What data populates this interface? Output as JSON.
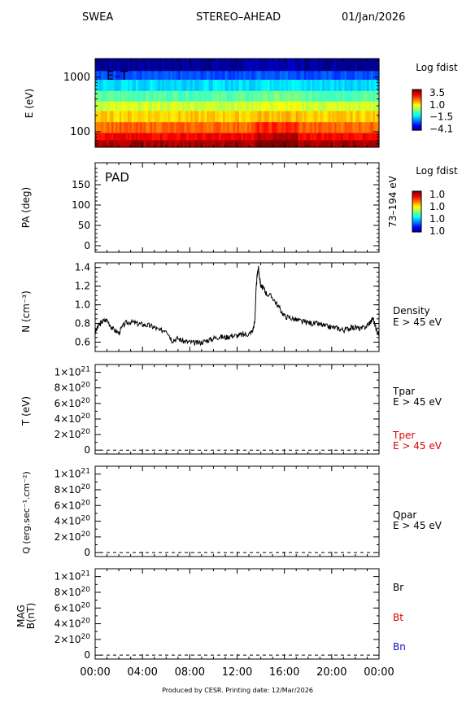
{
  "header": {
    "instrument": "SWEA",
    "spacecraft": "STEREO–AHEAD",
    "date": "01/Jan/2026"
  },
  "footer": {
    "text": "Produced by CESR.   Printing date: 12/Mar/2026"
  },
  "time_axis": {
    "ticks": [
      "00:00",
      "04:00",
      "08:00",
      "12:00",
      "16:00",
      "20:00",
      "00:00"
    ],
    "range_hours": [
      0,
      24
    ]
  },
  "colors": {
    "black": "#000000",
    "red": "#e00000",
    "blue": "#1010c0"
  },
  "chart_data": [
    {
      "type": "heatmap",
      "panel": "energy-time",
      "label": "E–T",
      "ylabel": "E (eV)",
      "yscale": "log",
      "yticks": [
        "100",
        "1000"
      ],
      "colorbar": {
        "title": "Log fdist",
        "ticks": [
          "3.5",
          "1.0",
          "−1.5",
          "−4.1"
        ],
        "range": [
          -4.1,
          3.5
        ]
      },
      "bands": [
        {
          "from": 1300,
          "to": 2200,
          "level": -3.9
        },
        {
          "from": 900,
          "to": 1300,
          "level": -2.6
        },
        {
          "from": 560,
          "to": 900,
          "level": -1.5
        },
        {
          "from": 360,
          "to": 560,
          "level": -0.6
        },
        {
          "from": 240,
          "to": 360,
          "level": 0.3
        },
        {
          "from": 150,
          "to": 240,
          "level": 1.0
        },
        {
          "from": 95,
          "to": 150,
          "level": 1.8
        },
        {
          "from": 70,
          "to": 95,
          "level": 2.6
        },
        {
          "from": 52,
          "to": 70,
          "level": 3.2
        }
      ]
    },
    {
      "type": "heatmap",
      "panel": "pitch-angle",
      "label": "PAD",
      "ylabel": "PA (deg)",
      "right_label": "73–194 eV",
      "yticks": [
        "0",
        "50",
        "100",
        "150"
      ],
      "ylim": [
        0,
        180
      ],
      "colorbar": {
        "title": "Log fdist",
        "ticks": [
          "1.0",
          "1.0",
          "1.0",
          "1.0"
        ]
      }
    },
    {
      "type": "line",
      "panel": "density",
      "ylabel": "N (cm⁻³)",
      "yticks": [
        "0.6",
        "0.8",
        "1.0",
        "1.2",
        "1.4"
      ],
      "ylim": [
        0.5,
        1.45
      ],
      "series": [
        {
          "name": "Density E > 45 eV",
          "label_lines": [
            "Density",
            "E > 45 eV"
          ],
          "x": [
            0,
            0.3,
            0.6,
            1.0,
            1.5,
            2.0,
            2.5,
            3.0,
            3.5,
            4.0,
            4.5,
            5.0,
            5.5,
            6.0,
            6.5,
            7.0,
            7.5,
            8.0,
            8.5,
            9.0,
            9.5,
            10.0,
            10.5,
            11.0,
            11.5,
            12.0,
            12.5,
            13.0,
            13.3,
            13.5,
            13.6,
            13.7,
            13.8,
            13.9,
            14.0,
            14.2,
            14.5,
            15.0,
            15.5,
            16.0,
            16.5,
            17.0,
            17.5,
            18.0,
            18.5,
            19.0,
            19.5,
            20.0,
            20.5,
            21.0,
            21.5,
            22.0,
            22.5,
            23.0,
            23.3,
            23.5,
            23.8,
            24.0
          ],
          "y": [
            0.7,
            0.78,
            0.82,
            0.84,
            0.74,
            0.7,
            0.8,
            0.82,
            0.8,
            0.79,
            0.78,
            0.76,
            0.72,
            0.74,
            0.62,
            0.64,
            0.61,
            0.6,
            0.59,
            0.6,
            0.62,
            0.64,
            0.66,
            0.65,
            0.67,
            0.67,
            0.68,
            0.69,
            0.72,
            0.82,
            1.15,
            1.32,
            1.4,
            1.3,
            1.2,
            1.18,
            1.12,
            1.08,
            0.98,
            0.88,
            0.86,
            0.84,
            0.82,
            0.81,
            0.8,
            0.79,
            0.77,
            0.76,
            0.75,
            0.73,
            0.75,
            0.76,
            0.74,
            0.78,
            0.82,
            0.86,
            0.72,
            0.68
          ]
        }
      ]
    },
    {
      "type": "line",
      "panel": "temperature",
      "ylabel": "T (eV)",
      "yticks": [
        "0",
        "2×10²⁰",
        "4×10²⁰",
        "6×10²⁰",
        "8×10²⁰",
        "1×10²¹"
      ],
      "ylim": [
        -5e+19,
        1.1e+21
      ],
      "series": [
        {
          "name": "Tpar E > 45 eV",
          "label_lines": [
            "Tpar",
            "E > 45 eV"
          ],
          "color": "#000000",
          "values": []
        },
        {
          "name": "Tper E > 45 eV",
          "label_lines": [
            "Tper",
            "E > 45 eV"
          ],
          "color": "#e00000",
          "values": []
        }
      ],
      "zero_line": "dashed"
    },
    {
      "type": "line",
      "panel": "heat-flux",
      "ylabel": "Q (erg.sec⁻¹.cm⁻²)",
      "yticks": [
        "0",
        "2×10²⁰",
        "4×10²⁰",
        "6×10²⁰",
        "8×10²⁰",
        "1×10²¹"
      ],
      "ylim": [
        -5e+19,
        1.1e+21
      ],
      "series": [
        {
          "name": "Qpar E > 45 eV",
          "label_lines": [
            "Qpar",
            "E > 45 eV"
          ],
          "color": "#000000",
          "values": []
        }
      ],
      "zero_line": "dashed"
    },
    {
      "type": "line",
      "panel": "magnetic-field",
      "ylabel_lines": [
        "MAG",
        "B(nT)"
      ],
      "yticks": [
        "0",
        "2×10²⁰",
        "4×10²⁰",
        "6×10²⁰",
        "8×10²⁰",
        "1×10²¹"
      ],
      "ylim": [
        -5e+19,
        1.1e+21
      ],
      "series": [
        {
          "name": "Br",
          "color": "#000000",
          "values": []
        },
        {
          "name": "Bt",
          "color": "#e00000",
          "values": []
        },
        {
          "name": "Bn",
          "color": "#1010c0",
          "values": []
        }
      ],
      "zero_line": "dashed"
    }
  ]
}
